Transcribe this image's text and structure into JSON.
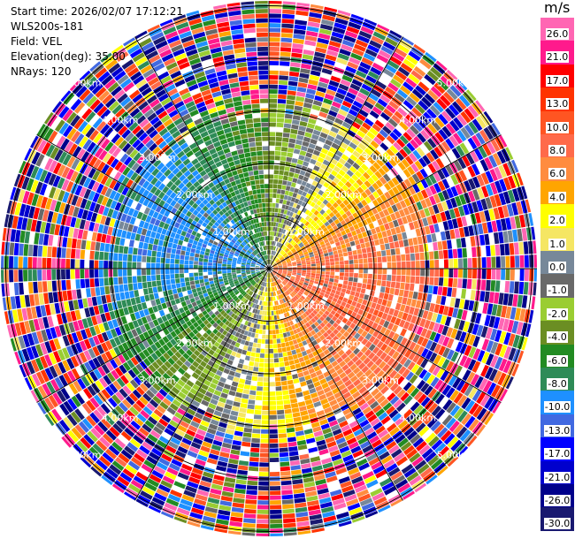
{
  "info": {
    "start_time": "Start time: 2026/02/07 17:12:21",
    "instrument": "WLS200s-181",
    "field": "Field: VEL",
    "elevation": "Elevation(deg): 35.00",
    "nrays": "NRays: 120"
  },
  "ppi": {
    "range_labels": [
      "1.00km",
      "2.00km",
      "3.00km",
      "4.00km",
      "5.00km"
    ],
    "ring_count": 5,
    "spoke_angles_deg": [
      0,
      30,
      60,
      90,
      120,
      150
    ],
    "nrays": 120
  },
  "colorbar": {
    "unit": "m/s",
    "ticks": [
      "26.0",
      "21.0",
      "17.0",
      "13.0",
      "10.0",
      "8.0",
      "6.0",
      "4.0",
      "2.0",
      "1.0",
      "0.0",
      "-1.0",
      "-2.0",
      "-4.0",
      "-6.0",
      "-8.0",
      "-10.0",
      "-13.0",
      "-17.0",
      "-21.0",
      "-26.0",
      "-30.0"
    ],
    "bins": [
      {
        "lo": 26,
        "hi": 30,
        "color": "#ff66b3"
      },
      {
        "lo": 21,
        "hi": 26,
        "color": "#ff1a8c"
      },
      {
        "lo": 17,
        "hi": 21,
        "color": "#ff0000"
      },
      {
        "lo": 13,
        "hi": 17,
        "color": "#ff3300"
      },
      {
        "lo": 10,
        "hi": 13,
        "color": "#ff5522"
      },
      {
        "lo": 8,
        "hi": 10,
        "color": "#ff6a4a"
      },
      {
        "lo": 6,
        "hi": 8,
        "color": "#ff8c3f"
      },
      {
        "lo": 4,
        "hi": 6,
        "color": "#ffa500"
      },
      {
        "lo": 2,
        "hi": 4,
        "color": "#ffff00"
      },
      {
        "lo": 1,
        "hi": 2,
        "color": "#f5e663"
      },
      {
        "lo": 0,
        "hi": 1,
        "color": "#778899"
      },
      {
        "lo": -1,
        "hi": 0,
        "color": "#696969"
      },
      {
        "lo": -2,
        "hi": -1,
        "color": "#9acd32"
      },
      {
        "lo": -4,
        "hi": -2,
        "color": "#6b8e23"
      },
      {
        "lo": -6,
        "hi": -4,
        "color": "#228b22"
      },
      {
        "lo": -8,
        "hi": -6,
        "color": "#2e8b57"
      },
      {
        "lo": -10,
        "hi": -8,
        "color": "#1e90ff"
      },
      {
        "lo": -13,
        "hi": -10,
        "color": "#4169e1"
      },
      {
        "lo": -17,
        "hi": -13,
        "color": "#0000ff"
      },
      {
        "lo": -21,
        "hi": -17,
        "color": "#0000cd"
      },
      {
        "lo": -26,
        "hi": -21,
        "color": "#00008b"
      },
      {
        "lo": -30,
        "hi": -26,
        "color": "#191970"
      }
    ]
  }
}
